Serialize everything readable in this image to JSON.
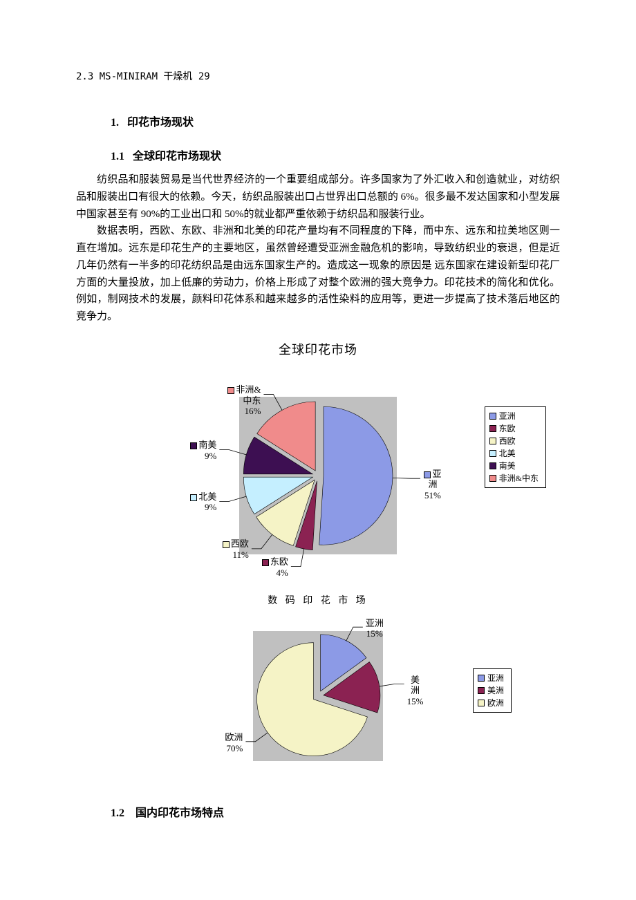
{
  "header_line": "2.3  MS-MINIRAM 干燥机 29",
  "h1_num": "1.",
  "h1_text": "印花市场现状",
  "h2a_num": "1.1",
  "h2a_text": "全球印花市场现状",
  "para1": "纺织品和服装贸易是当代世界经济的一个重要组成部分。许多国家为了外汇收入和创造就业，对纺织品和服装出口有很大的依赖。今天，纺织品服装出口占世界出口总额的 6%。很多最不发达国家和小型发展中国家甚至有 90%的工业出口和 50%的就业都严重依赖于纺织品和服装行业。",
  "para2": "数据表明，西欧、东欧、非洲和北美的印花产量均有不同程度的下降，而中东、远东和拉美地区则一直在增加。远东是印花生产的主要地区，虽然曾经遭受亚洲金融危机的影响，导致纺织业的衰退，但是近几年仍然有一半多的印花纺织品是由远东国家生产的。造成这一现象的原因是 远东国家在建设新型印花厂方面的大量投放，加上低廉的劳动力，价格上形成了对整个欧洲的强大竞争力。印花技术的简化和优化。例如，制网技术的发展，颜料印花体系和越来越多的活性染料的应用等，更进一步提高了技术落后地区的竞争力。",
  "h2b_num": "1.2",
  "h2b_text": "国内印花市场特点",
  "chart1": {
    "title": "全球印花市场",
    "plot_bg": "#c0c0c0",
    "explode_gap": 8,
    "slices": [
      {
        "label": "亚洲",
        "value": 51,
        "pct": "51%",
        "color": "#8c9ae6"
      },
      {
        "label": "东欧",
        "value": 4,
        "pct": "4%",
        "color": "#8b2252"
      },
      {
        "label": "西欧",
        "value": 11,
        "pct": "11%",
        "color": "#f5f3c6"
      },
      {
        "label": "北美",
        "value": 9,
        "pct": "9%",
        "color": "#c5efff"
      },
      {
        "label": "南美",
        "value": 9,
        "pct": "9%",
        "color": "#3d0f52"
      },
      {
        "label": "非洲&中东",
        "value": 16,
        "pct": "16%",
        "color": "#f08b8b"
      }
    ],
    "legend": [
      "亚洲",
      "东欧",
      "西欧",
      "北美",
      "南美",
      "非洲&中东"
    ]
  },
  "chart2": {
    "title": "数 码 印 花 市 场",
    "plot_bg": "#c0c0c0",
    "explode_gap": 8,
    "slices": [
      {
        "label": "亚洲",
        "value": 15,
        "pct": "15%",
        "color": "#8c9ae6"
      },
      {
        "label": "美洲",
        "value": 15,
        "pct": "15%",
        "color": "#8b2252"
      },
      {
        "label": "欧洲",
        "value": 70,
        "pct": "70%",
        "color": "#f5f3c6"
      }
    ],
    "legend": [
      "亚洲",
      "美洲",
      "欧洲"
    ]
  }
}
